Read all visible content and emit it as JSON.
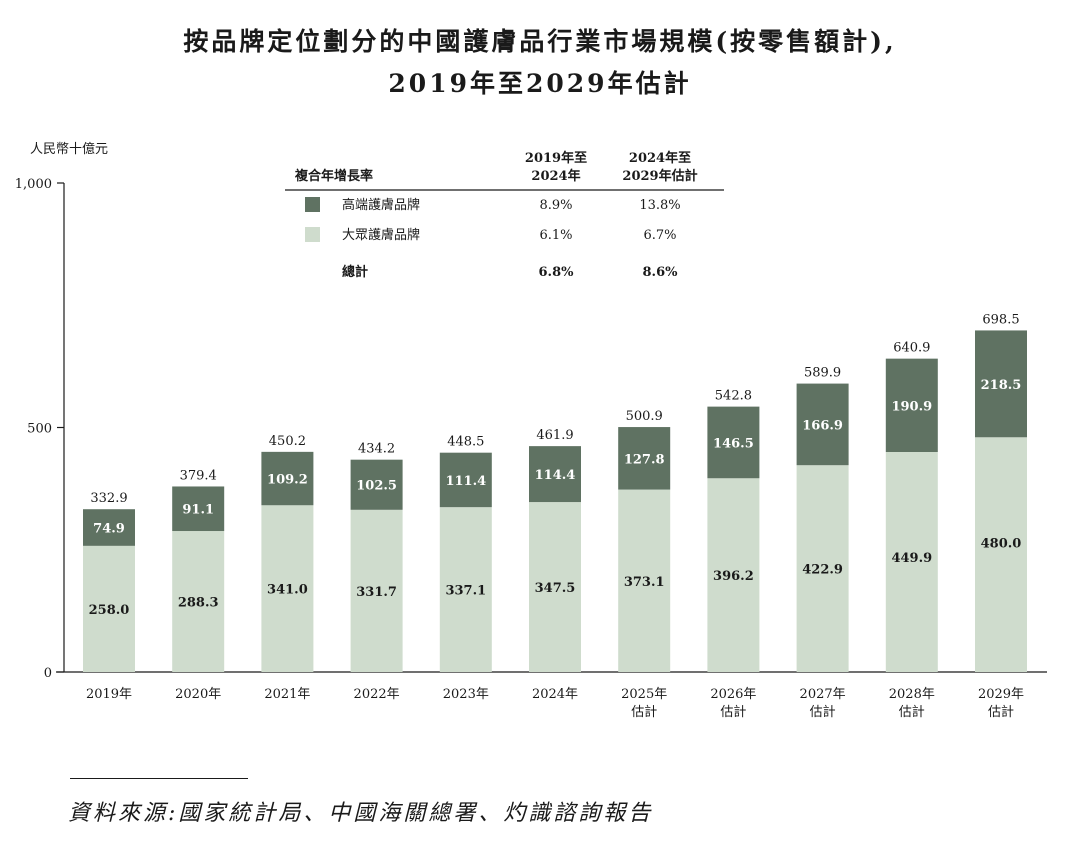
{
  "title": {
    "line1": "按品牌定位劃分的中國護膚品行業市場規模(按零售額計),",
    "line2": "2019年至2029年估計"
  },
  "source": "資料來源:國家統計局、中國海關總署、灼識諮詢報告",
  "colors": {
    "premium": "#5f7262",
    "mass": "#cfdccd"
  },
  "chart_data": {
    "type": "bar",
    "stacked": true,
    "ylabel": "人民幣十億元",
    "ylim": [
      0,
      1000
    ],
    "yticks": [
      "0",
      "500",
      "1,000"
    ],
    "categories": [
      "2019年",
      "2020年",
      "2021年",
      "2022年",
      "2023年",
      "2024年",
      "2025年",
      "2026年",
      "2027年",
      "2028年",
      "2029年"
    ],
    "category_sublabels": [
      "",
      "",
      "",
      "",
      "",
      "",
      "估計",
      "估計",
      "估計",
      "估計",
      "估計"
    ],
    "series": [
      {
        "name": "大眾護膚品牌",
        "values": [
          258.0,
          288.3,
          341.0,
          331.7,
          337.1,
          347.5,
          373.1,
          396.2,
          422.9,
          449.9,
          480.0
        ],
        "labels": [
          "258.0",
          "288.3",
          "341.0",
          "331.7",
          "337.1",
          "347.5",
          "373.1",
          "396.2",
          "422.9",
          "449.9",
          "480.0"
        ]
      },
      {
        "name": "高端護膚品牌",
        "values": [
          74.9,
          91.1,
          109.2,
          102.5,
          111.4,
          114.4,
          127.8,
          146.5,
          166.9,
          190.9,
          218.5
        ],
        "labels": [
          "74.9",
          "91.1",
          "109.2",
          "102.5",
          "111.4",
          "114.4",
          "127.8",
          "146.5",
          "166.9",
          "190.9",
          "218.5"
        ]
      }
    ],
    "totals": [
      332.9,
      379.4,
      450.2,
      434.2,
      448.5,
      461.9,
      500.9,
      542.8,
      589.9,
      640.9,
      698.5
    ],
    "total_labels": [
      "332.9",
      "379.4",
      "450.2",
      "434.2",
      "448.5",
      "461.9",
      "500.9",
      "542.8",
      "589.9",
      "640.9",
      "698.5"
    ],
    "legend": {
      "header": "複合年增長率",
      "col1": [
        "2019年至",
        "2024年"
      ],
      "col2": [
        "2024年至",
        "2029年估計"
      ],
      "rows": [
        {
          "name": "高端護膚品牌",
          "key": "premium",
          "v1": "8.9%",
          "v2": "13.8%"
        },
        {
          "name": "大眾護膚品牌",
          "key": "mass",
          "v1": "6.1%",
          "v2": "6.7%"
        },
        {
          "name": "總計",
          "key": "",
          "v1": "6.8%",
          "v2": "8.6%"
        }
      ]
    }
  }
}
